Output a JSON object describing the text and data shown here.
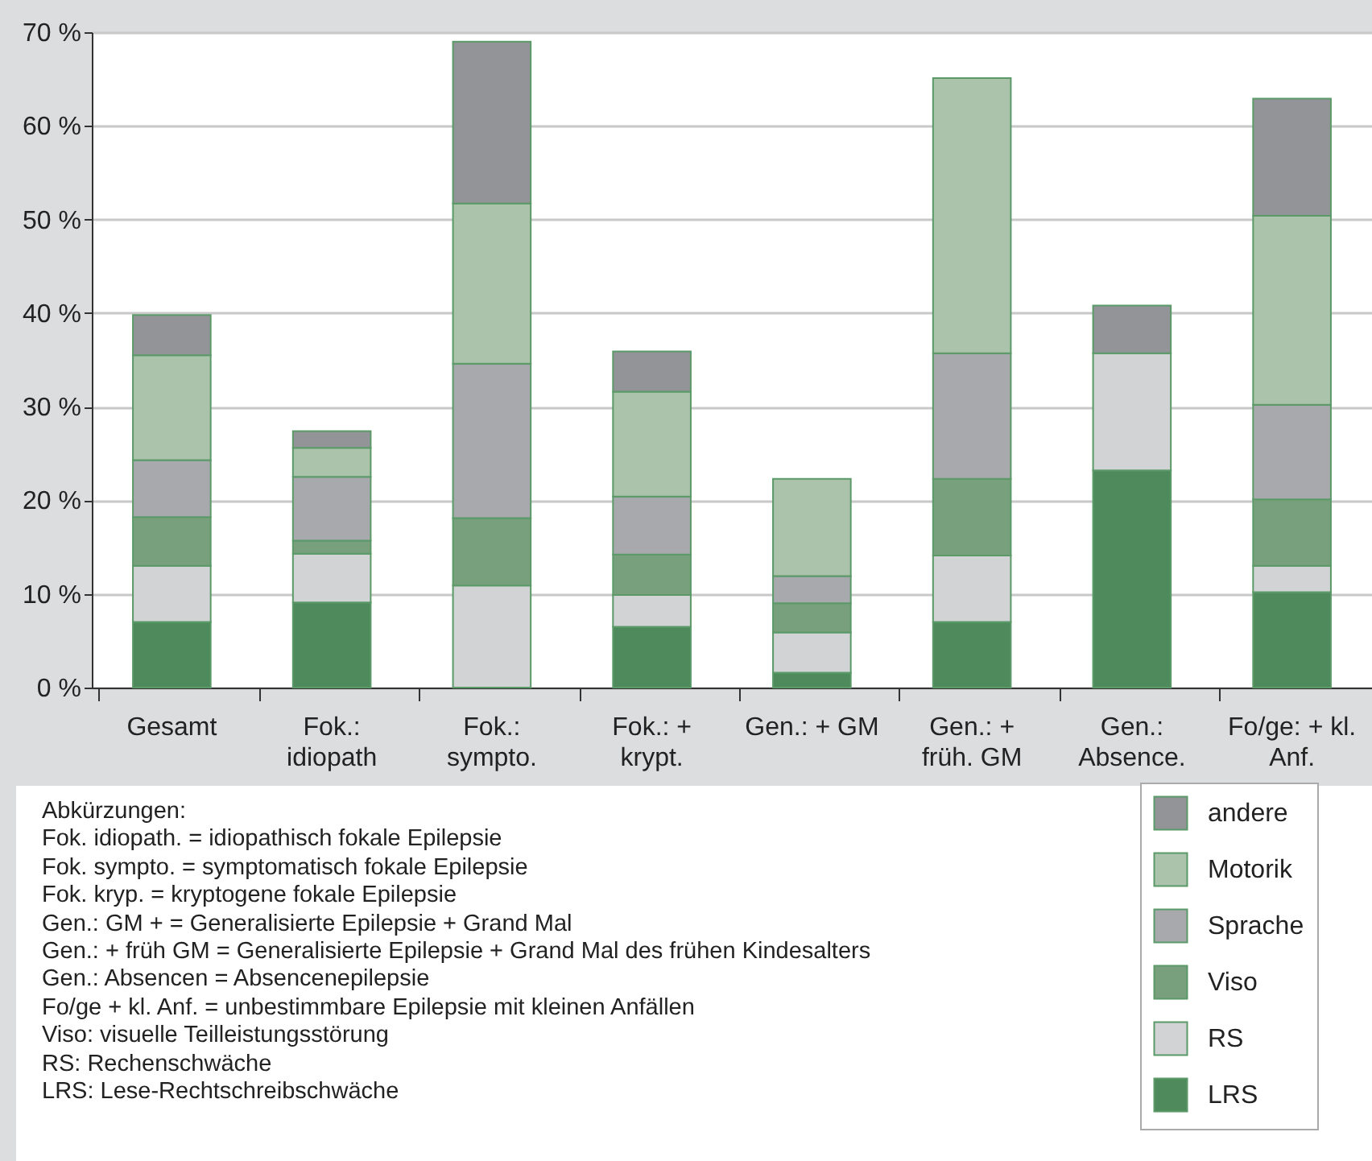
{
  "chart_data": {
    "type": "bar",
    "stacked": true,
    "categories": [
      "Gesamt",
      "Fok.:\nidiopath",
      "Fok.:\nsympto.",
      "Fok.: +\nkrypt.",
      "Gen.: + GM",
      "Gen.: +\nfrüh. GM",
      "Gen.:\nAbsence.",
      "Fo/ge: + kl.\nAnf."
    ],
    "series": [
      {
        "name": "LRS",
        "color": "#4e8a5c",
        "values": [
          7,
          9.1,
          null,
          6.5,
          1.6,
          7,
          23.2,
          10.2
        ]
      },
      {
        "name": "RS",
        "color": "#d1d3d4",
        "values": [
          6,
          5.2,
          10.9,
          3.4,
          4.3,
          7.1,
          12.5,
          2.8
        ]
      },
      {
        "name": "Viso",
        "color": "#78a07c",
        "values": [
          5.2,
          1.4,
          7.2,
          4.3,
          3.1,
          8.2,
          null,
          7.1
        ]
      },
      {
        "name": "Sprache",
        "color": "#a7a9ac",
        "values": [
          6.1,
          6.8,
          16.5,
          6.2,
          2.9,
          13.4,
          null,
          10.1
        ]
      },
      {
        "name": "Motorik",
        "color": "#abc3ab",
        "values": [
          11.2,
          3.1,
          17.1,
          11.2,
          10.4,
          29.4,
          null,
          20.2
        ]
      },
      {
        "name": "andere",
        "color": "#929497",
        "values": [
          4.3,
          1.8,
          17.3,
          4.3,
          null,
          null,
          5.1,
          12.5
        ]
      }
    ],
    "ylim": [
      0,
      70
    ],
    "yticks": [
      {
        "value": 0,
        "label": "0 %"
      },
      {
        "value": 10,
        "label": "10 %"
      },
      {
        "value": 20,
        "label": "20 %"
      },
      {
        "value": 30,
        "label": "30 %"
      },
      {
        "value": 40,
        "label": "40 %"
      },
      {
        "value": 50,
        "label": "50 %"
      },
      {
        "value": 60,
        "label": "60 %"
      },
      {
        "value": 70,
        "label": "70 %"
      }
    ],
    "grid": "y",
    "legend": "bottom right",
    "annotations": [
      "Abkürzungen:",
      "Fok. idiopath. = idiopathisch fokale Epilepsie",
      "Fok. sympto. = symptomatisch fokale Epilepsie",
      "Fok. kryp. = kryptogene fokale Epilepsie",
      "Gen.: GM + = Generalisierte Epilepsie + Grand Mal",
      "Gen.: + früh GM = Generalisierte Epilepsie + Grand Mal des frühen Kindesalters",
      "Gen.: Absencen = Absencenepilepsie",
      "Fo/ge + kl. Anf. = unbestimmbare Epilepsie mit kleinen Anfällen",
      "Viso: visuelle Teilleistungsstörung",
      "RS: Rechenschwäche",
      "LRS: Lese-Rechtschreibschwäche"
    ]
  }
}
